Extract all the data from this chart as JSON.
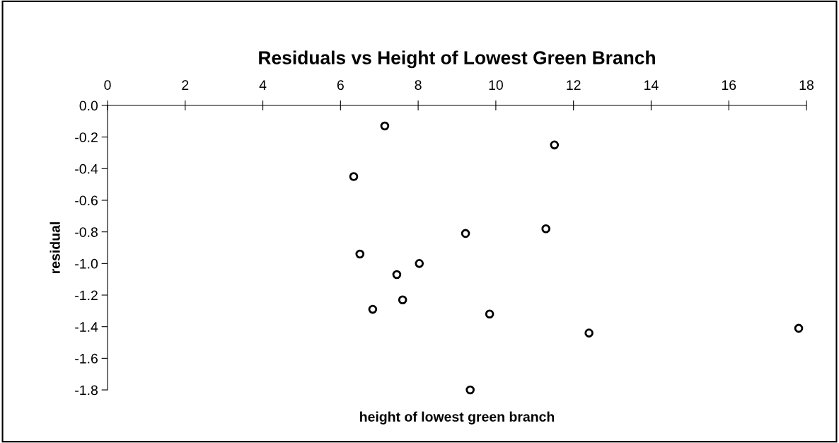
{
  "chart_data": {
    "type": "scatter",
    "title": "Residuals vs Height of Lowest Green Branch",
    "xlabel": "height of lowest green branch",
    "ylabel": "residual",
    "x": [
      7.14,
      11.51,
      6.34,
      9.22,
      11.29,
      6.5,
      8.03,
      7.45,
      7.6,
      6.83,
      9.84,
      12.4,
      17.8,
      9.34
    ],
    "series": [
      {
        "color": "#000000",
        "values": [
          -0.13,
          -0.25,
          -0.45,
          -0.81,
          -0.78,
          -0.94,
          -1.0,
          -1.07,
          -1.23,
          -1.29,
          -1.32,
          -1.44,
          -1.41,
          -1.8
        ]
      }
    ],
    "xlim": [
      0,
      18
    ],
    "xticks": [
      0,
      2,
      4,
      6,
      8,
      10,
      12,
      14,
      16,
      18
    ],
    "ylim": [
      -1.8,
      0
    ],
    "yticks": [
      {
        "value": 0,
        "label": "0.0"
      },
      {
        "value": -0.2,
        "label": "-0.2"
      },
      {
        "value": -0.4,
        "label": "-0.4"
      },
      {
        "value": -0.6,
        "label": "-0.6"
      },
      {
        "value": -0.8,
        "label": "-0.8"
      },
      {
        "value": -1.0,
        "label": "-1.0"
      },
      {
        "value": -1.2,
        "label": "-1.2"
      },
      {
        "value": -1.4,
        "label": "-1.4"
      },
      {
        "value": -1.6,
        "label": "-1.6"
      },
      {
        "value": -1.8,
        "label": "-1.8"
      }
    ],
    "marker": "circle",
    "grid": false,
    "legend": false
  }
}
